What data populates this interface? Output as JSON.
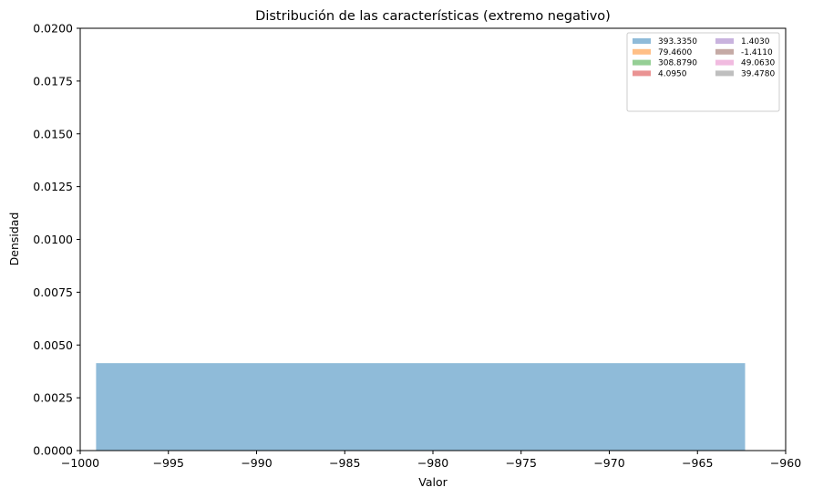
{
  "chart_data": {
    "type": "histogram",
    "title": "Distribución de las características (extremo negativo)",
    "xlabel": "Valor",
    "ylabel": "Densidad",
    "xlim": [
      -1000,
      -960
    ],
    "ylim": [
      0,
      0.02
    ],
    "x_ticks": [
      "−1000",
      "−995",
      "−990",
      "−985",
      "−980",
      "−975",
      "−970",
      "−965",
      "−960"
    ],
    "x_tick_values": [
      -1000,
      -995,
      -990,
      -985,
      -980,
      -975,
      -970,
      -965,
      -960
    ],
    "y_ticks": [
      "0.0000",
      "0.0025",
      "0.0050",
      "0.0075",
      "0.0100",
      "0.0125",
      "0.0150",
      "0.0175",
      "0.0200"
    ],
    "y_tick_values": [
      0,
      0.0025,
      0.005,
      0.0075,
      0.01,
      0.0125,
      0.015,
      0.0175,
      0.02
    ],
    "grid": false,
    "legend_position": "top-right",
    "legend_columns": 2,
    "series": [
      {
        "name": "393.3350",
        "color": "#1f77b4",
        "bins": [
          {
            "x0": -999.1,
            "x1": -962.3,
            "density": 0.00414
          }
        ]
      },
      {
        "name": "79.4600",
        "color": "#ff7f0e",
        "bins": []
      },
      {
        "name": "308.8790",
        "color": "#2ca02c",
        "bins": []
      },
      {
        "name": "4.0950",
        "color": "#d62728",
        "bins": []
      },
      {
        "name": "1.4030",
        "color": "#9467bd",
        "bins": []
      },
      {
        "name": "-1.4110",
        "color": "#8c564b",
        "bins": []
      },
      {
        "name": "49.0630",
        "color": "#e377c2",
        "bins": []
      },
      {
        "name": "39.4780",
        "color": "#7f7f7f",
        "bins": []
      }
    ]
  }
}
